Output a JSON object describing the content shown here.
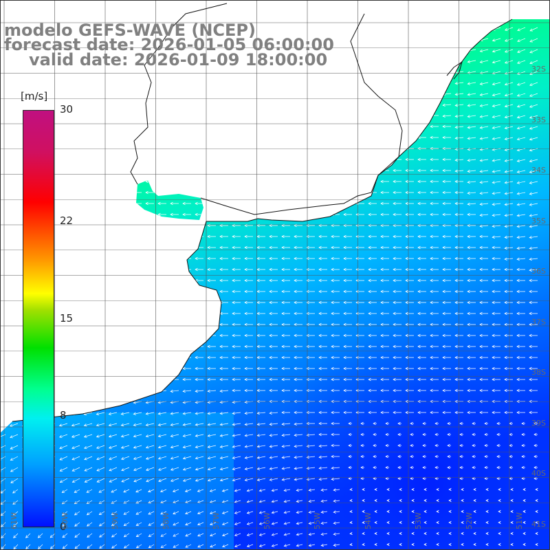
{
  "title": {
    "model": "modelo GEFS-WAVE (NCEP)",
    "forecast": "forecast date: 2026-01-05 06:00:00",
    "valid": "valid date: 2026-01-09 18:00:00"
  },
  "colorbar": {
    "unit": "[m/s]",
    "ticks": [
      {
        "label": "30",
        "value": 30
      },
      {
        "label": "22",
        "value": 22
      },
      {
        "label": "15",
        "value": 15
      },
      {
        "label": "8",
        "value": 8
      },
      {
        "label": "0",
        "value": 0
      }
    ]
  },
  "latitude_labels": [
    "32S",
    "33S",
    "34S",
    "35S",
    "36S",
    "37S",
    "38S",
    "39S",
    "40S",
    "41S"
  ],
  "longitude_labels": [
    "61W",
    "60W",
    "59W",
    "58W",
    "57W",
    "56W",
    "55W",
    "54W",
    "53W",
    "52W",
    "51W"
  ]
}
